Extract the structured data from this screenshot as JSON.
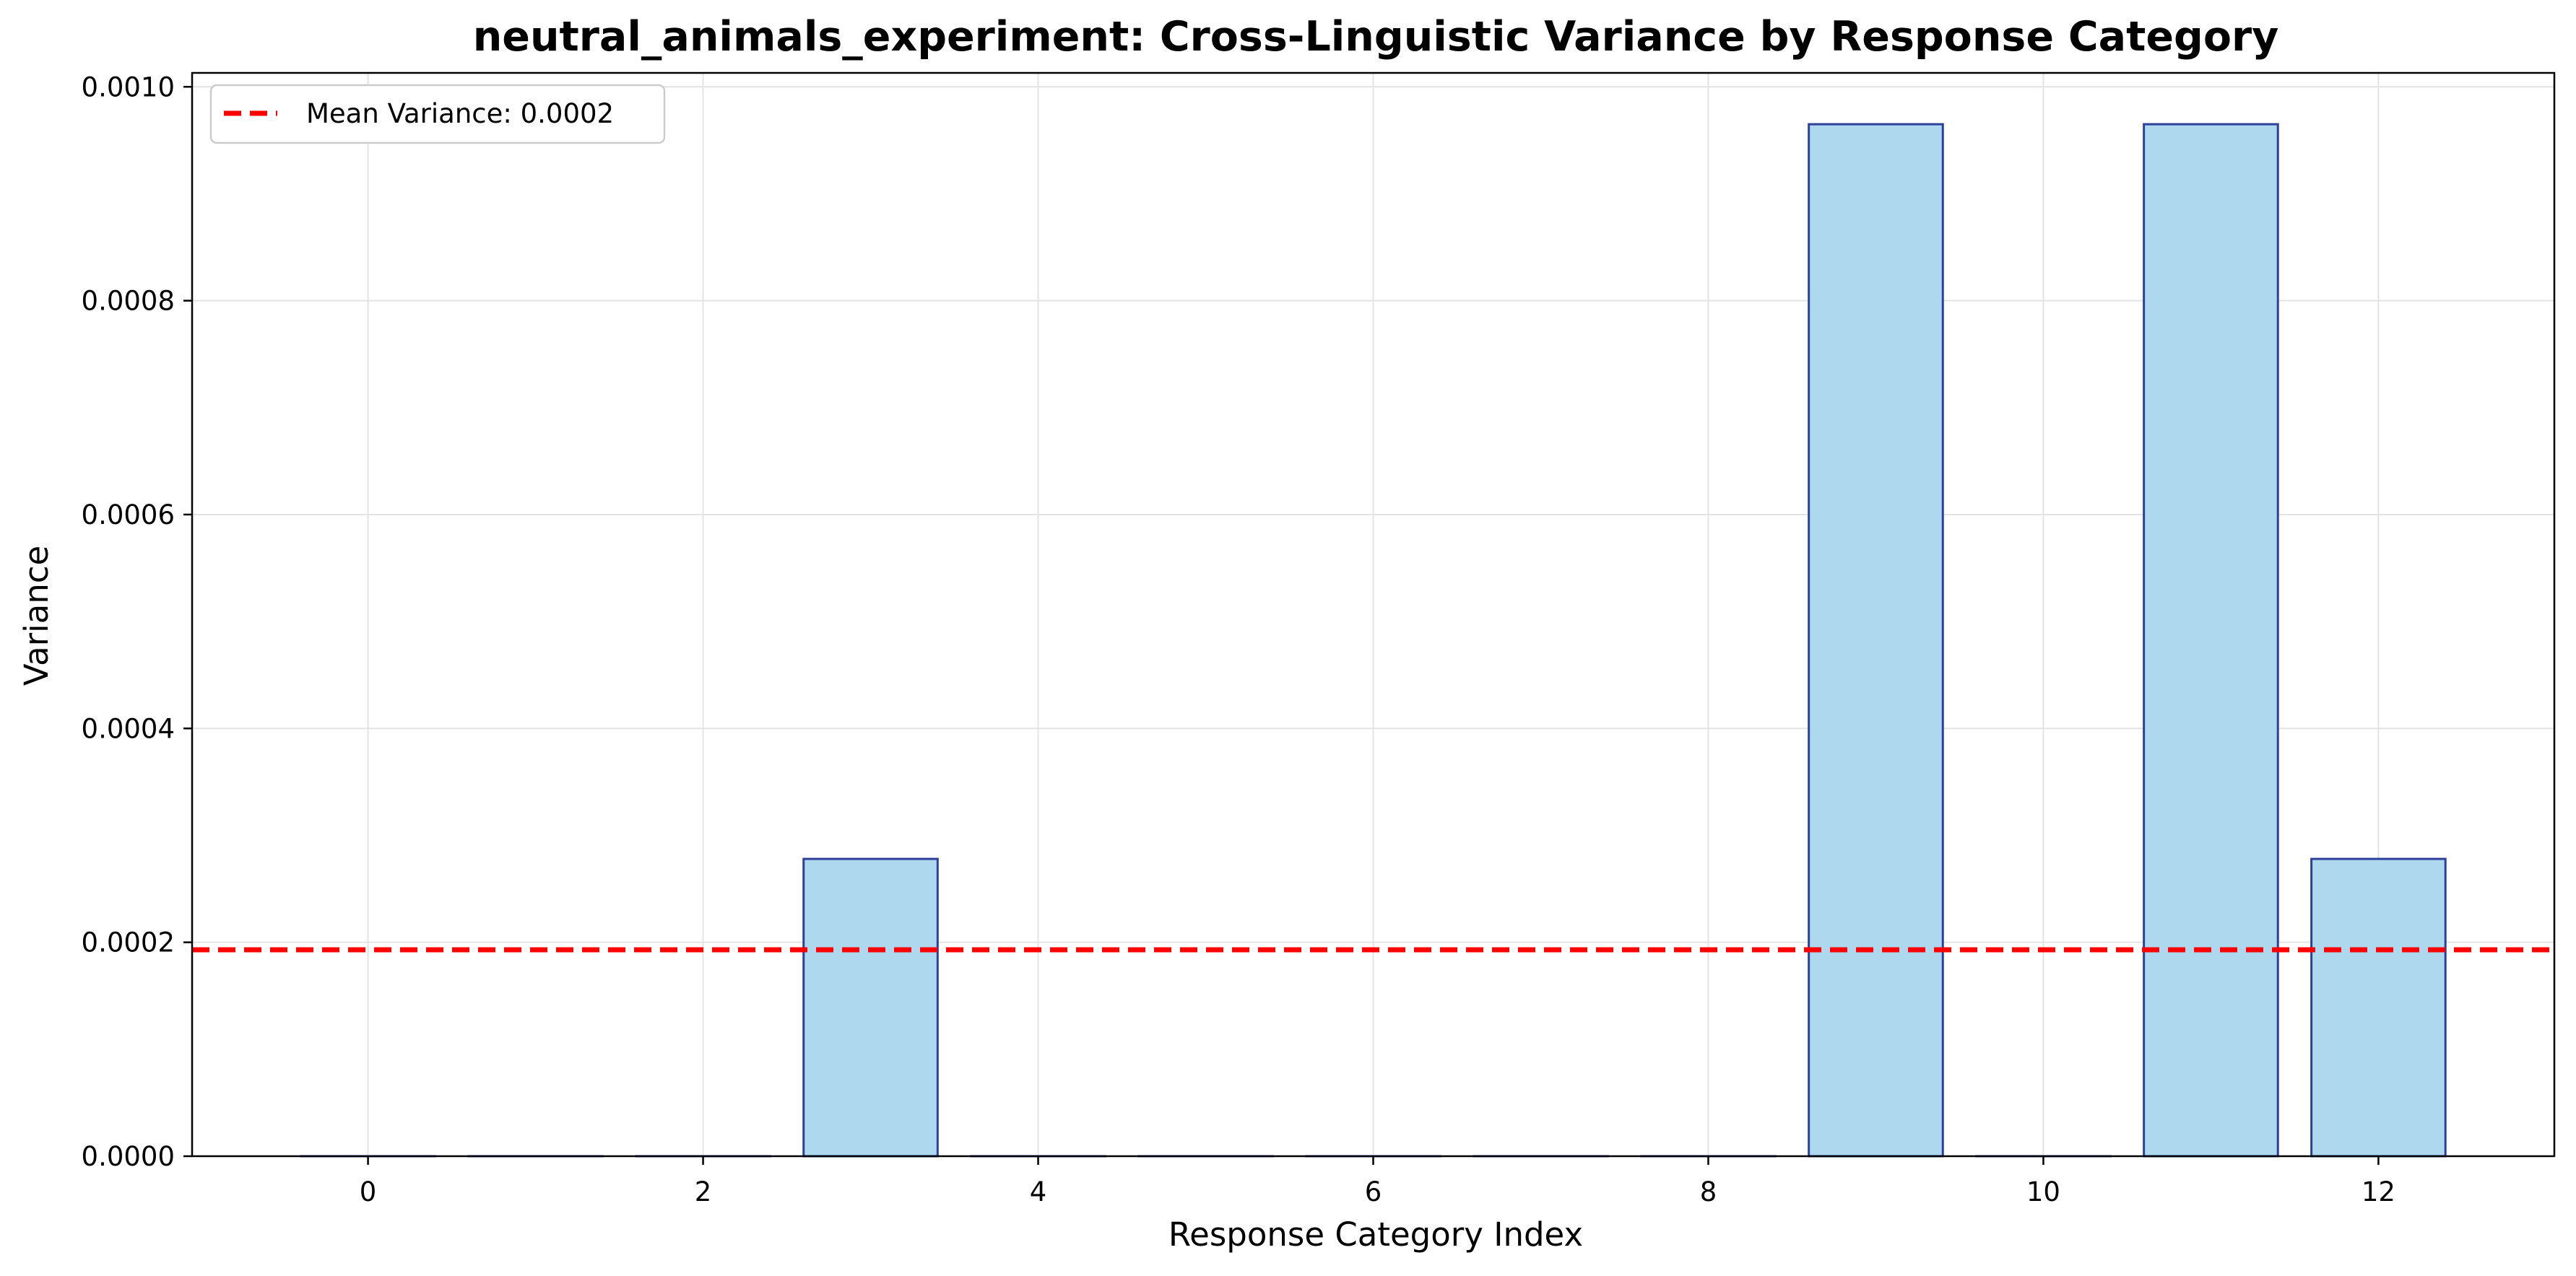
{
  "chart_data": {
    "type": "bar",
    "title": "neutral_animals_experiment: Cross-Linguistic Variance by Response Category",
    "xlabel": "Response Category Index",
    "ylabel": "Variance",
    "categories": [
      0,
      1,
      2,
      3,
      4,
      5,
      6,
      7,
      8,
      9,
      10,
      11,
      12
    ],
    "values": [
      0,
      0,
      0,
      0.000278,
      0,
      0,
      0,
      0,
      0,
      0.000965,
      0,
      0.000965,
      0.000278
    ],
    "xlim": [
      -1.05,
      13.05
    ],
    "ylim": [
      0,
      0.001013
    ],
    "xticks": [
      0,
      2,
      4,
      6,
      8,
      10,
      12
    ],
    "xtick_labels": [
      "0",
      "2",
      "4",
      "6",
      "8",
      "10",
      "12"
    ],
    "yticks": [
      0,
      0.0002,
      0.0004,
      0.0006,
      0.0008,
      0.001
    ],
    "ytick_labels": [
      "0.0000",
      "0.0002",
      "0.0004",
      "0.0006",
      "0.0008",
      "0.0010"
    ],
    "grid": true,
    "mean_line": {
      "value": 0.000193,
      "label": "Mean Variance: 0.0002",
      "color": "#ff0000"
    },
    "legend_placement": "top-left",
    "colors": {
      "bar_fill": "#add8ed",
      "bar_edge": "#2f3f9c",
      "grid": "#e3e3e3"
    }
  }
}
